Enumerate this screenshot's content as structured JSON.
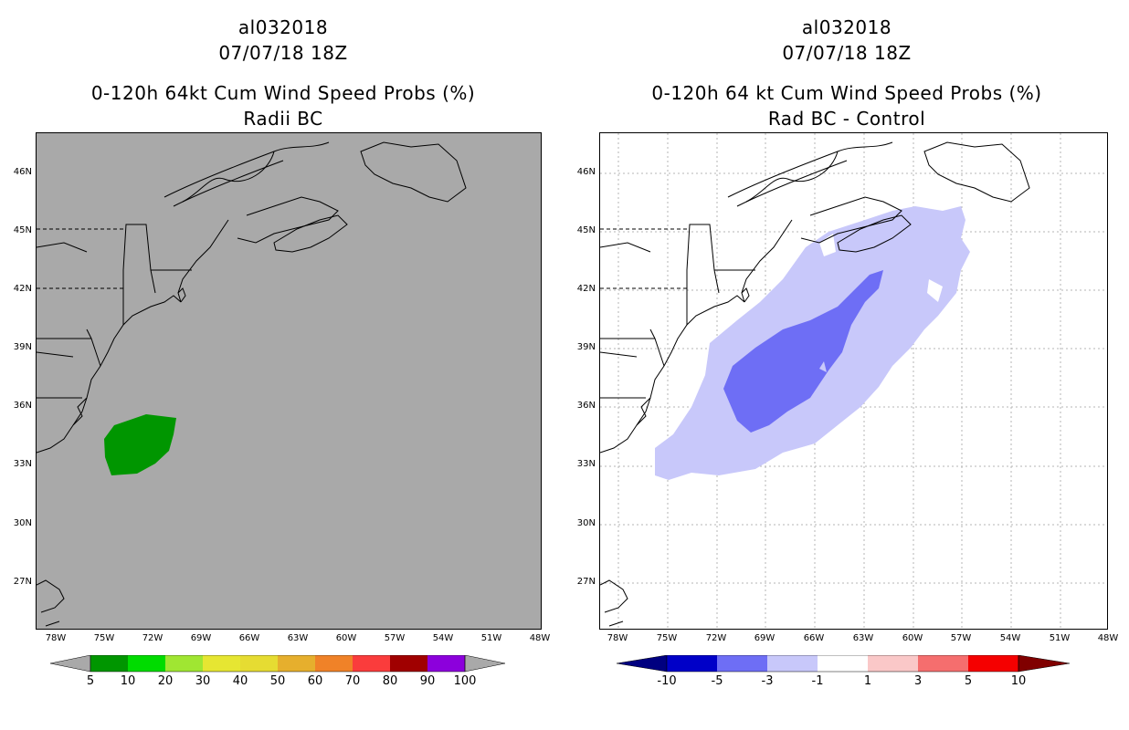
{
  "left_panel": {
    "storm_id": "al032018",
    "datetime": "07/07/18 18Z",
    "title": "0-120h 64kt Cum Wind Speed Probs (%)",
    "subtitle": "Radii BC",
    "background_color": "#a9a9a9",
    "colorbar_labels": [
      "5",
      "10",
      "20",
      "30",
      "40",
      "50",
      "60",
      "70",
      "80",
      "90",
      "100"
    ],
    "colorbar_colors": [
      "#009600",
      "#00dc00",
      "#a0e632",
      "#e6e632",
      "#e6dc32",
      "#e6af2d",
      "#f08228",
      "#fa3c3c",
      "#a00000",
      "#8c00dc"
    ]
  },
  "right_panel": {
    "storm_id": "al032018",
    "datetime": "07/07/18 18Z",
    "title": "0-120h 64 kt Cum Wind Speed Probs (%)",
    "subtitle": "Rad BC - Control",
    "background_color": "#ffffff",
    "colorbar_labels": [
      "-10",
      "-5",
      "-3",
      "-1",
      "1",
      "3",
      "5",
      "10"
    ],
    "colorbar_colors": [
      "#0000c8",
      "#6e6ef5",
      "#c8c8fa",
      "#ffffff",
      "#fac8c8",
      "#f56e6e",
      "#f50000"
    ]
  },
  "lat_labels": [
    "46N",
    "45N",
    "42N",
    "39N",
    "36N",
    "33N",
    "30N",
    "27N"
  ],
  "lon_labels": [
    "78W",
    "75W",
    "72W",
    "69W",
    "66W",
    "63W",
    "60W",
    "57W",
    "54W",
    "51W",
    "48W"
  ],
  "colors": {
    "green_prob": "#009600",
    "light_blue": "#c8c8fa",
    "mid_blue": "#6e6ef5",
    "coast": "#000000",
    "grid": "#b4b4b4"
  }
}
